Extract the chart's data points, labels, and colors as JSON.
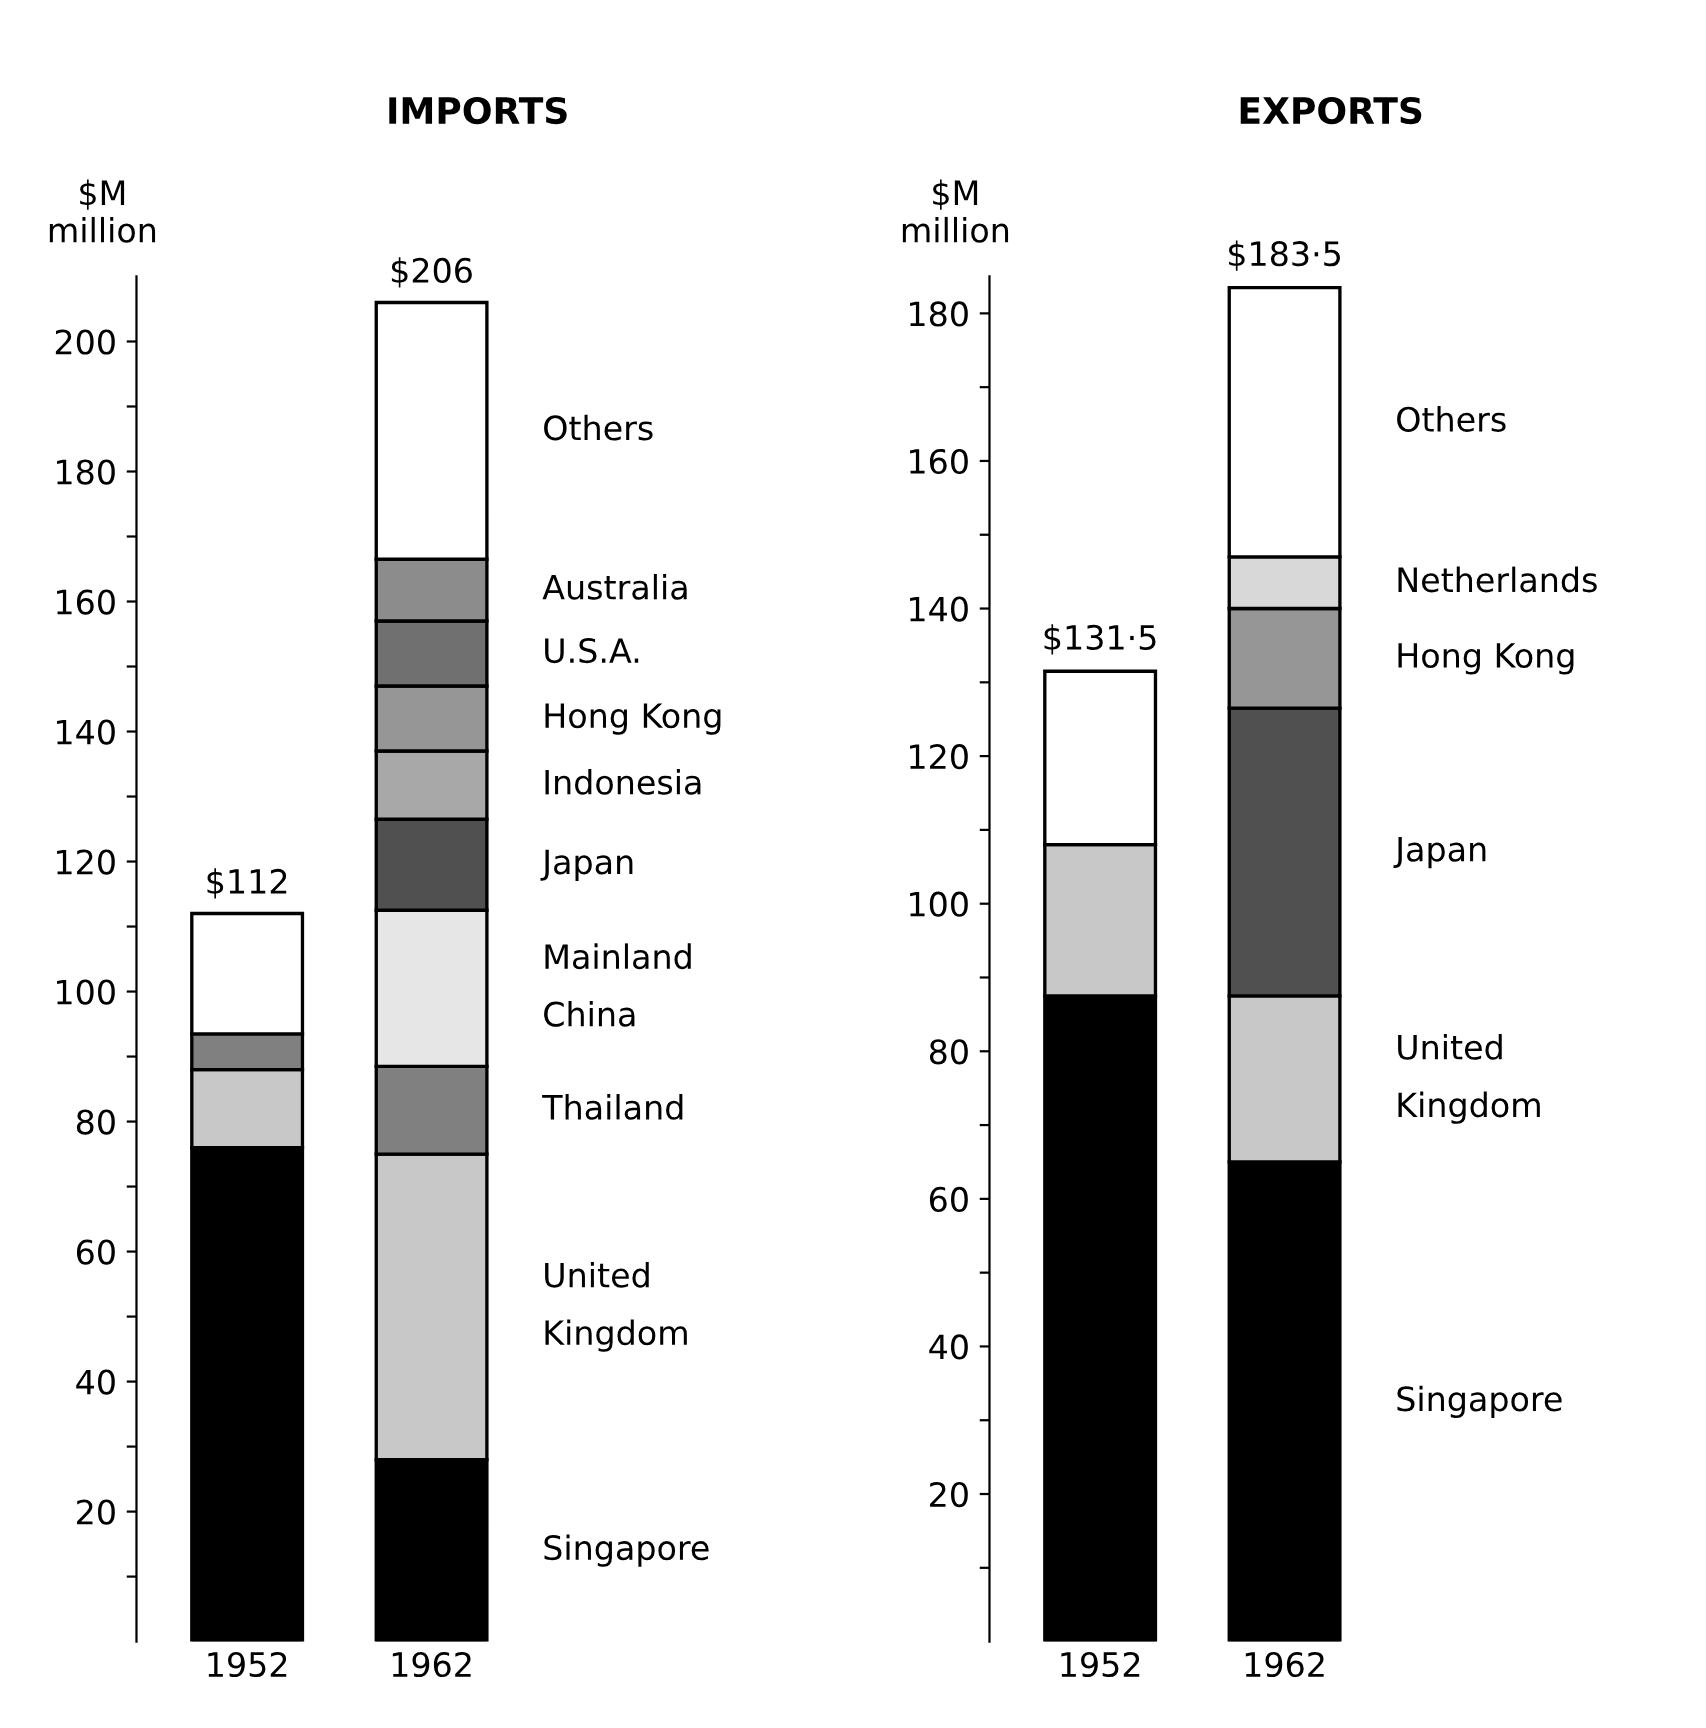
{
  "chart_data": [
    {
      "type": "bar",
      "title": "IMPORTS",
      "ylabel": "$M\nmillion",
      "categories": [
        "1952",
        "1962"
      ],
      "stacked": true,
      "legend": false,
      "grid": false,
      "ylim": [
        0,
        210
      ],
      "yticks": [
        {
          "value": 10,
          "label": null
        },
        20,
        {
          "value": 30,
          "label": null
        },
        40,
        {
          "value": 50,
          "label": null
        },
        60,
        {
          "value": 70,
          "label": null
        },
        80,
        {
          "value": 90,
          "label": null
        },
        100,
        {
          "value": 110,
          "label": null
        },
        120,
        {
          "value": 130,
          "label": null
        },
        140,
        {
          "value": 150,
          "label": null
        },
        160,
        {
          "value": 170,
          "label": null
        },
        180,
        {
          "value": 190,
          "label": null
        },
        200
      ],
      "totals": [
        "$112",
        "$206"
      ],
      "series": [
        {
          "name": "Singapore",
          "color": "#000000",
          "values": [
            76,
            28
          ]
        },
        {
          "name": "United\nKingdom",
          "color": "#c8c8c8",
          "values": [
            12,
            47
          ]
        },
        {
          "name": "Thailand",
          "color": "#808080",
          "values": [
            5.5,
            13.5
          ]
        },
        {
          "name": "Mainland\nChina",
          "color": "#e6e6e6",
          "values": [
            null,
            24
          ]
        },
        {
          "name": "Japan",
          "color": "#505050",
          "values": [
            null,
            14
          ]
        },
        {
          "name": "Indonesia",
          "color": "#a8a8a8",
          "values": [
            null,
            10.5
          ]
        },
        {
          "name": "Hong Kong",
          "color": "#969696",
          "values": [
            null,
            10
          ]
        },
        {
          "name": "U.S.A.",
          "color": "#707070",
          "values": [
            null,
            10
          ]
        },
        {
          "name": "Australia",
          "color": "#8c8c8c",
          "values": [
            null,
            9.5
          ]
        },
        {
          "name": "Others",
          "color": "#ffffff",
          "values": [
            18.5,
            39.5
          ]
        }
      ]
    },
    {
      "type": "bar",
      "title": "EXPORTS",
      "ylabel": "$M\nmillion",
      "categories": [
        "1952",
        "1962"
      ],
      "stacked": true,
      "legend": false,
      "grid": false,
      "ylim": [
        0,
        185
      ],
      "yticks": [
        {
          "value": 10,
          "label": null
        },
        20,
        {
          "value": 30,
          "label": null
        },
        40,
        {
          "value": 50,
          "label": null
        },
        60,
        {
          "value": 70,
          "label": null
        },
        80,
        {
          "value": 90,
          "label": null
        },
        100,
        {
          "value": 110,
          "label": null
        },
        120,
        {
          "value": 130,
          "label": null
        },
        140,
        {
          "value": 150,
          "label": null
        },
        160,
        {
          "value": 170,
          "label": null
        },
        180
      ],
      "totals": [
        "$131·5",
        "$183·5"
      ],
      "series": [
        {
          "name": "Singapore",
          "color": "#000000",
          "values": [
            87.5,
            65
          ]
        },
        {
          "name": "United\nKingdom",
          "color": "#c8c8c8",
          "values": [
            20.5,
            22.5
          ]
        },
        {
          "name": "Japan",
          "color": "#505050",
          "values": [
            null,
            39
          ]
        },
        {
          "name": "Hong Kong",
          "color": "#969696",
          "values": [
            null,
            13.5
          ]
        },
        {
          "name": "Netherlands",
          "color": "#d8d8d8",
          "values": [
            null,
            7
          ]
        },
        {
          "name": "Others",
          "color": "#ffffff",
          "values": [
            23.5,
            36.5
          ]
        }
      ]
    }
  ]
}
